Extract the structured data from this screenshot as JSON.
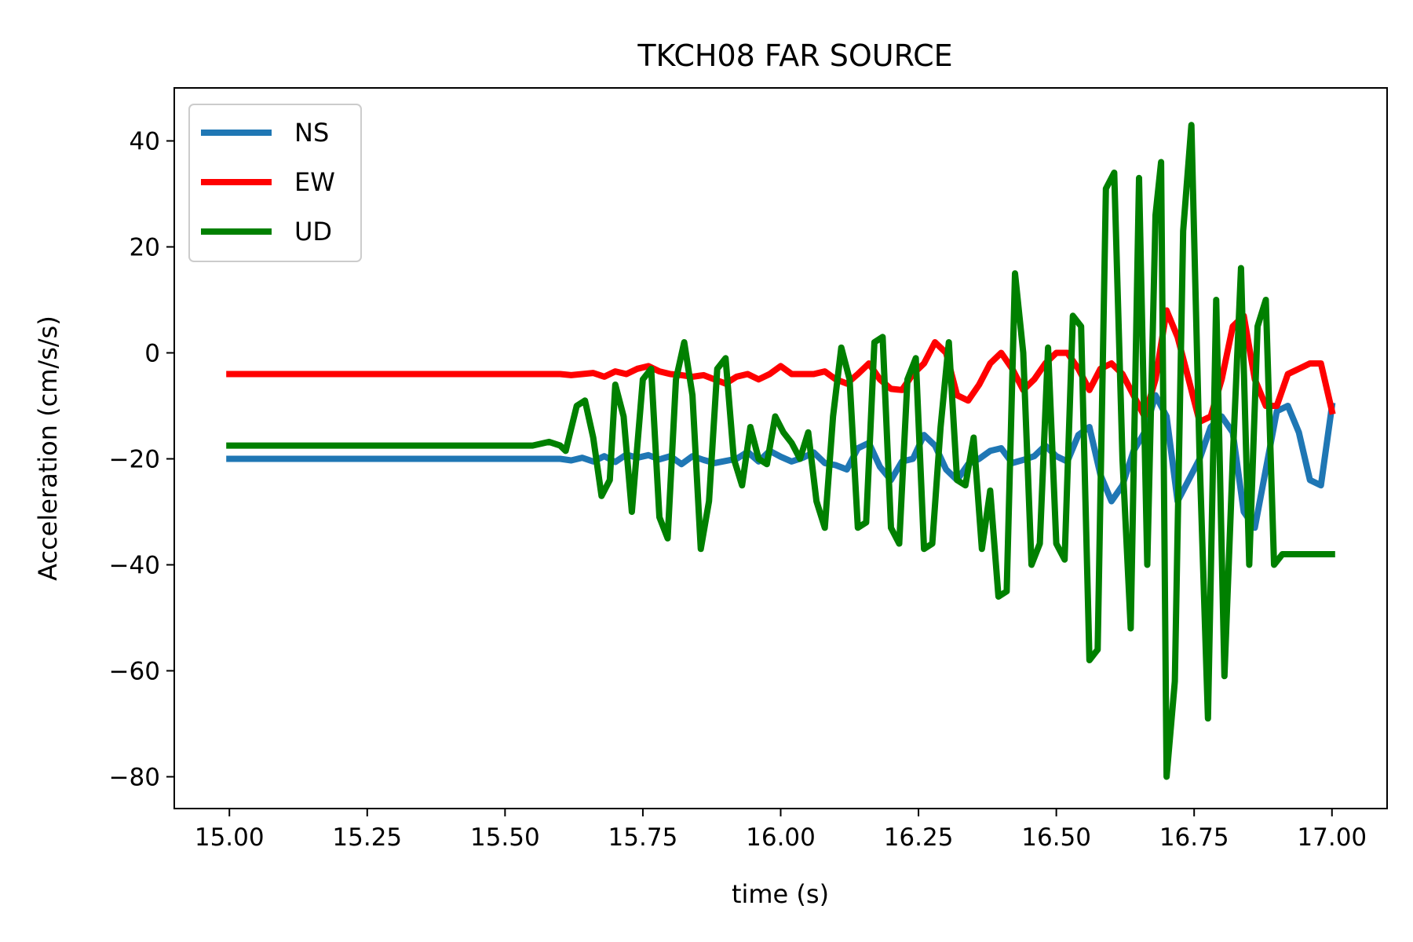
{
  "chart_data": {
    "type": "line",
    "title": "TKCH08 FAR SOURCE",
    "xlabel": "time (s)",
    "ylabel": "Acceleration (cm/s/s)",
    "xlim": [
      14.9,
      17.1
    ],
    "ylim": [
      -86,
      50
    ],
    "xticks": [
      15.0,
      15.25,
      15.5,
      15.75,
      16.0,
      16.25,
      16.5,
      16.75,
      17.0
    ],
    "xtick_labels": [
      "15.00",
      "15.25",
      "15.50",
      "15.75",
      "16.00",
      "16.25",
      "16.50",
      "16.75",
      "17.00"
    ],
    "yticks": [
      -80,
      -60,
      -40,
      -20,
      0,
      20,
      40
    ],
    "ytick_labels": [
      "−80",
      "−60",
      "−40",
      "−20",
      "0",
      "20",
      "40"
    ],
    "grid": false,
    "legend_position": "top-left",
    "series": [
      {
        "name": "NS",
        "color": "#1f77b4",
        "x": [
          15.0,
          15.1,
          15.2,
          15.3,
          15.4,
          15.5,
          15.6,
          15.62,
          15.64,
          15.66,
          15.68,
          15.7,
          15.72,
          15.74,
          15.76,
          15.78,
          15.8,
          15.82,
          15.84,
          15.86,
          15.88,
          15.9,
          15.92,
          15.94,
          15.96,
          15.98,
          16.0,
          16.02,
          16.04,
          16.06,
          16.08,
          16.1,
          16.12,
          16.14,
          16.16,
          16.18,
          16.2,
          16.22,
          16.24,
          16.26,
          16.28,
          16.3,
          16.32,
          16.34,
          16.36,
          16.38,
          16.4,
          16.42,
          16.44,
          16.46,
          16.48,
          16.5,
          16.52,
          16.54,
          16.56,
          16.58,
          16.6,
          16.62,
          16.64,
          16.66,
          16.68,
          16.7,
          16.72,
          16.74,
          16.76,
          16.78,
          16.8,
          16.82,
          16.84,
          16.86,
          16.88,
          16.9,
          16.92,
          16.94,
          16.96,
          16.98,
          17.0
        ],
        "y": [
          -20,
          -20,
          -20,
          -20,
          -20,
          -20,
          -20,
          -20.3,
          -19.8,
          -20.5,
          -19.5,
          -20.6,
          -19.2,
          -19.8,
          -19.3,
          -20.1,
          -19.5,
          -21,
          -19.5,
          -20.2,
          -20.8,
          -20.4,
          -20,
          -18.7,
          -20.5,
          -18.5,
          -19.6,
          -20.5,
          -19.8,
          -18.8,
          -20.8,
          -21.2,
          -22,
          -18,
          -17,
          -21.5,
          -24,
          -20.5,
          -20,
          -15.5,
          -17.5,
          -22,
          -24,
          -21,
          -20,
          -18.5,
          -18,
          -20.8,
          -20.2,
          -19.5,
          -17.5,
          -19.5,
          -20.5,
          -15.5,
          -14,
          -23,
          -28,
          -25,
          -18.5,
          -15,
          -8,
          -12,
          -28,
          -24,
          -20,
          -14,
          -12,
          -15,
          -30,
          -33,
          -22,
          -11,
          -10,
          -15,
          -24,
          -25,
          -10
        ]
      },
      {
        "name": "EW",
        "color": "#ff0000",
        "x": [
          15.0,
          15.1,
          15.2,
          15.3,
          15.4,
          15.5,
          15.6,
          15.62,
          15.64,
          15.66,
          15.68,
          15.7,
          15.72,
          15.74,
          15.76,
          15.78,
          15.8,
          15.82,
          15.84,
          15.86,
          15.88,
          15.9,
          15.92,
          15.94,
          15.96,
          15.98,
          16.0,
          16.02,
          16.04,
          16.06,
          16.08,
          16.1,
          16.12,
          16.14,
          16.16,
          16.18,
          16.2,
          16.22,
          16.24,
          16.26,
          16.28,
          16.3,
          16.32,
          16.34,
          16.36,
          16.38,
          16.4,
          16.42,
          16.44,
          16.46,
          16.48,
          16.5,
          16.52,
          16.54,
          16.56,
          16.58,
          16.6,
          16.62,
          16.64,
          16.66,
          16.68,
          16.7,
          16.72,
          16.74,
          16.76,
          16.78,
          16.8,
          16.82,
          16.84,
          16.86,
          16.88,
          16.9,
          16.92,
          16.94,
          16.96,
          16.98,
          17.0
        ],
        "y": [
          -4,
          -4,
          -4,
          -4,
          -4,
          -4,
          -4,
          -4.2,
          -4,
          -3.8,
          -4.5,
          -3.5,
          -4,
          -3,
          -2.5,
          -3.5,
          -4,
          -4.2,
          -4.5,
          -4.2,
          -5,
          -5.8,
          -4.5,
          -4,
          -5,
          -4,
          -2.5,
          -4,
          -4,
          -4,
          -3.5,
          -5,
          -5.8,
          -4,
          -2,
          -5,
          -6.8,
          -7,
          -4,
          -2,
          2,
          0,
          -8,
          -9,
          -6,
          -2,
          0,
          -3,
          -7,
          -5,
          -2,
          0,
          0,
          -3,
          -7,
          -3,
          -2,
          -4,
          -8,
          -12,
          -5,
          8,
          3,
          -5,
          -13,
          -12,
          -5,
          5,
          7,
          -5,
          -10,
          -10,
          -4,
          -3,
          -2,
          -2,
          -11
        ]
      },
      {
        "name": "UD",
        "color": "#008000",
        "x": [
          15.0,
          15.1,
          15.2,
          15.3,
          15.4,
          15.5,
          15.55,
          15.58,
          15.6,
          15.61,
          15.63,
          15.645,
          15.66,
          15.675,
          15.69,
          15.7,
          15.715,
          15.73,
          15.75,
          15.765,
          15.78,
          15.795,
          15.81,
          15.825,
          15.84,
          15.855,
          15.87,
          15.885,
          15.9,
          15.915,
          15.93,
          15.945,
          15.96,
          15.975,
          15.99,
          16.005,
          16.02,
          16.035,
          16.05,
          16.065,
          16.08,
          16.095,
          16.11,
          16.125,
          16.14,
          16.155,
          16.17,
          16.185,
          16.2,
          16.215,
          16.23,
          16.245,
          16.26,
          16.275,
          16.29,
          16.305,
          16.32,
          16.335,
          16.35,
          16.365,
          16.38,
          16.395,
          16.41,
          16.425,
          16.44,
          16.455,
          16.47,
          16.485,
          16.5,
          16.515,
          16.53,
          16.545,
          16.56,
          16.575,
          16.59,
          16.605,
          16.62,
          16.635,
          16.65,
          16.665,
          16.68,
          16.69,
          16.7,
          16.715,
          16.73,
          16.745,
          16.76,
          16.775,
          16.79,
          16.805,
          16.82,
          16.835,
          16.85,
          16.865,
          16.88,
          16.895,
          16.91,
          16.925,
          16.94,
          16.955,
          16.97,
          16.985,
          17.0
        ],
        "y": [
          -17.5,
          -17.5,
          -17.5,
          -17.5,
          -17.5,
          -17.5,
          -17.5,
          -16.8,
          -17.5,
          -18.5,
          -10,
          -9,
          -16,
          -27,
          -24,
          -6,
          -12,
          -30,
          -5,
          -3,
          -31,
          -35,
          -5,
          2,
          -8,
          -37,
          -28,
          -3,
          -1,
          -20,
          -25,
          -14,
          -20,
          -21,
          -12,
          -15,
          -17,
          -20,
          -15,
          -28,
          -33,
          -12,
          1,
          -5,
          -33,
          -32,
          2,
          3,
          -33,
          -36,
          -5,
          -1,
          -37,
          -36,
          -14,
          2,
          -24,
          -25,
          -16,
          -37,
          -26,
          -46,
          -45,
          15,
          0,
          -40,
          -36,
          1,
          -36,
          -39,
          7,
          5,
          -58,
          -56,
          31,
          34,
          -20,
          -52,
          33,
          -40,
          26,
          36,
          -80,
          -62,
          23,
          43,
          -20,
          -69,
          10,
          -61,
          -20,
          16,
          -40,
          5,
          10,
          -40,
          -38,
          -38,
          -38,
          -38,
          -38,
          -38,
          -38
        ]
      }
    ]
  }
}
